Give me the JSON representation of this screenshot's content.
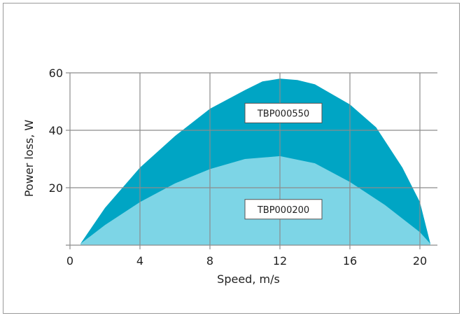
{
  "colors": {
    "outer_area": "#00a5c4",
    "inner_area": "#7dd5e6",
    "grid": "#8c8c8c",
    "frame": "#9a9a9a"
  },
  "chart_data": {
    "type": "area",
    "xlabel": "Speed, m/s",
    "ylabel": "Power loss, W",
    "xlim": [
      0,
      21
    ],
    "ylim": [
      0,
      60
    ],
    "xticks": [
      0,
      4,
      8,
      12,
      16,
      20
    ],
    "yticks": [
      20,
      40,
      60
    ],
    "grid": true,
    "series": [
      {
        "name": "TBP000550",
        "x": [
          0.6,
          2,
          4,
          6,
          8,
          10,
          11,
          12,
          13,
          14,
          16,
          17.5,
          19,
          20,
          20.6
        ],
        "values": [
          0.5,
          13,
          27,
          38,
          47.5,
          54,
          57,
          58,
          57.5,
          56,
          49,
          41,
          27,
          15,
          0.5
        ]
      },
      {
        "name": "TBP000200",
        "x": [
          0.6,
          2,
          4,
          6,
          8,
          10,
          12,
          14,
          16,
          18,
          20,
          20.6
        ],
        "values": [
          0.5,
          7,
          15,
          21.5,
          26.5,
          30,
          31,
          28.5,
          22,
          14,
          4.5,
          0.5
        ]
      }
    ],
    "annotations": [
      {
        "text": "TBP000550",
        "x": 12.2,
        "y": 46
      },
      {
        "text": "TBP000200",
        "x": 12.2,
        "y": 12.5
      }
    ]
  }
}
